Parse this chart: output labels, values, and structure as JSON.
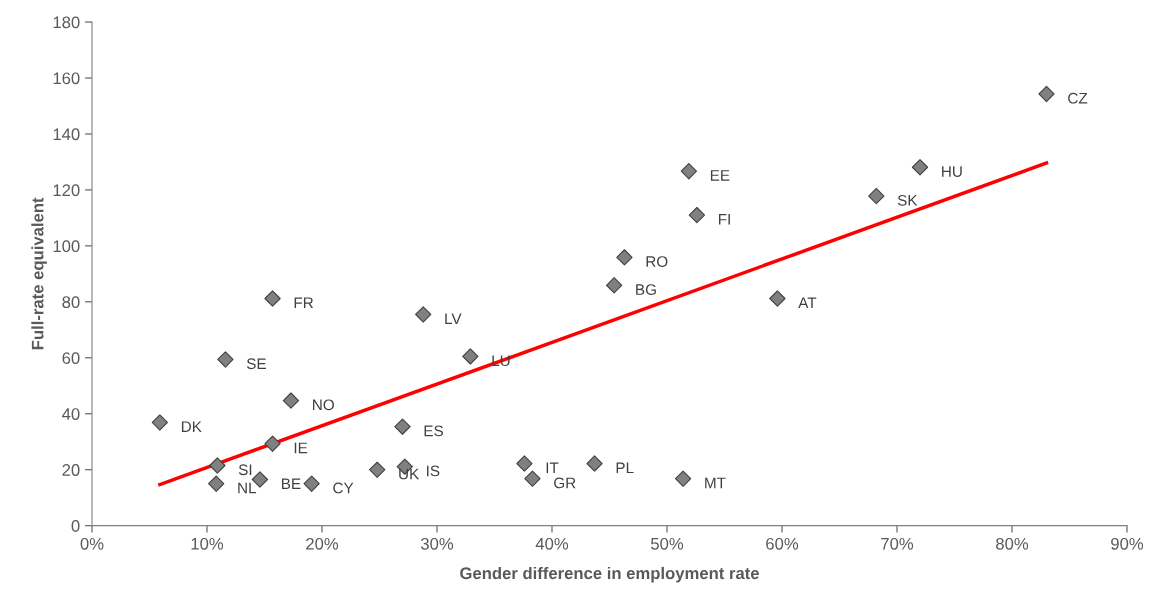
{
  "chart_data": {
    "type": "scatter",
    "xlabel": "Gender difference in employment rate",
    "ylabel": "Full-rate equivalent",
    "xlim": [
      0,
      90
    ],
    "ylim": [
      0,
      180
    ],
    "xticks": [
      {
        "value": 0,
        "label": "0%"
      },
      {
        "value": 10,
        "label": "10%"
      },
      {
        "value": 20,
        "label": "20%"
      },
      {
        "value": 30,
        "label": "30%"
      },
      {
        "value": 40,
        "label": "40%"
      },
      {
        "value": 50,
        "label": "50%"
      },
      {
        "value": 60,
        "label": "60%"
      },
      {
        "value": 70,
        "label": "70%"
      },
      {
        "value": 80,
        "label": "80%"
      },
      {
        "value": 90,
        "label": "90%"
      }
    ],
    "yticks": [
      0,
      20,
      40,
      60,
      80,
      100,
      120,
      140,
      160,
      180
    ],
    "grid": false,
    "legend": false,
    "series": [
      {
        "marker": "diamond",
        "color": "#808080",
        "x": [
          83.0,
          72.0,
          68.2,
          51.9,
          52.6,
          46.3,
          45.4,
          59.6,
          15.7,
          28.8,
          11.6,
          32.9,
          17.3,
          5.9,
          27.0,
          15.7,
          10.9,
          27.2,
          24.8,
          37.6,
          43.7,
          38.3,
          51.4,
          14.6,
          10.8,
          19.1
        ],
        "values": [
          154.3,
          128.1,
          117.8,
          126.7,
          111.0,
          95.9,
          85.9,
          81.2,
          81.2,
          75.5,
          59.4,
          60.5,
          44.7,
          36.9,
          35.4,
          29.3,
          21.5,
          21.1,
          20.0,
          22.2,
          22.2,
          16.8,
          16.8,
          16.5,
          15.0,
          15.0
        ]
      },
      {
        "type": "line",
        "color": "#ff0000",
        "x": [
          5.9,
          83.0
        ],
        "values": [
          14.7,
          129.6
        ]
      }
    ],
    "annotations": [
      {
        "text": "CZ",
        "x": 83.0,
        "y": 154.3
      },
      {
        "text": "HU",
        "x": 72.0,
        "y": 128.1
      },
      {
        "text": "SK",
        "x": 68.2,
        "y": 117.8
      },
      {
        "text": "EE",
        "x": 51.9,
        "y": 126.7
      },
      {
        "text": "FI",
        "x": 52.6,
        "y": 111.0
      },
      {
        "text": "RO",
        "x": 46.3,
        "y": 95.9
      },
      {
        "text": "BG",
        "x": 45.4,
        "y": 85.9
      },
      {
        "text": "AT",
        "x": 59.6,
        "y": 81.2
      },
      {
        "text": "FR",
        "x": 15.7,
        "y": 81.2
      },
      {
        "text": "LV",
        "x": 28.8,
        "y": 75.5
      },
      {
        "text": "SE",
        "x": 11.6,
        "y": 59.4
      },
      {
        "text": "LU",
        "x": 32.9,
        "y": 60.5
      },
      {
        "text": "NO",
        "x": 17.3,
        "y": 44.7
      },
      {
        "text": "DK",
        "x": 5.9,
        "y": 36.9
      },
      {
        "text": "ES",
        "x": 27.0,
        "y": 35.4
      },
      {
        "text": "IE",
        "x": 15.7,
        "y": 29.3
      },
      {
        "text": "SI",
        "x": 10.9,
        "y": 21.5
      },
      {
        "text": "IS",
        "x": 27.2,
        "y": 21.1
      },
      {
        "text": "UK",
        "x": 24.8,
        "y": 20.0
      },
      {
        "text": "IT",
        "x": 37.6,
        "y": 22.2
      },
      {
        "text": "PL",
        "x": 43.7,
        "y": 22.2
      },
      {
        "text": "GR",
        "x": 38.3,
        "y": 16.8
      },
      {
        "text": "MT",
        "x": 51.4,
        "y": 16.8
      },
      {
        "text": "BE",
        "x": 14.6,
        "y": 16.5
      },
      {
        "text": "NL",
        "x": 10.8,
        "y": 15.0
      },
      {
        "text": "CY",
        "x": 19.1,
        "y": 15.0
      }
    ]
  }
}
